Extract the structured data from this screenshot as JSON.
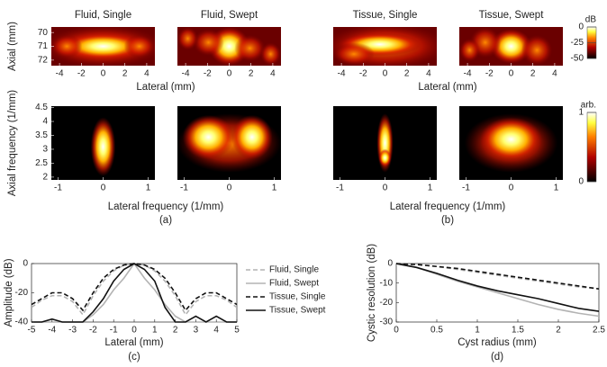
{
  "chart_data": [
    {
      "type": "heatmap",
      "title": "Fluid, Single",
      "xlim": [
        -4.75,
        4.75
      ],
      "xticks": [
        -4,
        -2,
        0,
        2,
        4
      ],
      "ylim": [
        69.6,
        72.4
      ],
      "y_reverse": true,
      "yticks": [
        70,
        71,
        72
      ],
      "ylabel": "Axial (mm)",
      "xlabel": "Lateral (mm)"
    },
    {
      "type": "heatmap",
      "title": "Fluid, Swept",
      "xlim": [
        -4.75,
        4.75
      ],
      "xticks": [
        -4,
        -2,
        0,
        2,
        4
      ],
      "ylim": [
        69.6,
        72.4
      ],
      "y_reverse": true
    },
    {
      "type": "heatmap",
      "title": "Tissue, Single",
      "xlim": [
        -4.75,
        4.75
      ],
      "xticks": [
        -4,
        -2,
        0,
        2,
        4
      ],
      "ylim": [
        69.6,
        72.4
      ],
      "y_reverse": true,
      "xlabel": "Lateral (mm)"
    },
    {
      "type": "heatmap",
      "title": "Tissue, Swept",
      "xlim": [
        -4.75,
        4.75
      ],
      "xticks": [
        -4,
        -2,
        0,
        2,
        4
      ],
      "ylim": [
        69.6,
        72.4
      ],
      "y_reverse": true
    },
    {
      "type": "heatmap",
      "xlim": [
        -1.15,
        1.15
      ],
      "xticks": [
        -1,
        0,
        1
      ],
      "ylim": [
        1.9,
        4.55
      ],
      "yticks": [
        2,
        2.5,
        3,
        3.5,
        4,
        4.5
      ],
      "ylabel": "Axial frequency (1/mm)",
      "xlabel": "Lateral frequency (1/mm)",
      "caption": "(a)"
    },
    {
      "type": "heatmap",
      "xlim": [
        -1.15,
        1.15
      ],
      "xticks": [
        -1,
        0,
        1
      ],
      "ylim": [
        1.9,
        4.55
      ]
    },
    {
      "type": "heatmap",
      "xlim": [
        -1.15,
        1.15
      ],
      "xticks": [
        -1,
        0,
        1
      ],
      "ylim": [
        1.9,
        4.55
      ],
      "xlabel": "Lateral frequency (1/mm)",
      "caption": "(b)"
    },
    {
      "type": "heatmap",
      "xlim": [
        -1.15,
        1.15
      ],
      "xticks": [
        -1,
        0,
        1
      ],
      "ylim": [
        1.9,
        4.55
      ]
    },
    {
      "type": "colorbar",
      "title": "dB",
      "ylim": [
        -50,
        0
      ],
      "yticks": [
        0,
        -25,
        -50
      ]
    },
    {
      "type": "colorbar",
      "title": "arb.",
      "ylim": [
        0,
        1
      ],
      "yticks": [
        1,
        0
      ]
    },
    {
      "type": "line",
      "xlabel": "Lateral (mm)",
      "ylabel": "Amplitude (dB)",
      "caption": "(c)",
      "xlim": [
        -5,
        5
      ],
      "xticks": [
        -5,
        -4,
        -3,
        -2,
        -1,
        0,
        1,
        2,
        3,
        4,
        5
      ],
      "ylim": [
        -40,
        0
      ],
      "yticks": [
        0,
        -20,
        -40
      ],
      "legend": "right",
      "x": [
        -5,
        -4.5,
        -4,
        -3.5,
        -3,
        -2.5,
        -2,
        -1.5,
        -1,
        -0.5,
        0,
        0.5,
        1,
        1.5,
        2,
        2.5,
        3,
        3.5,
        4,
        4.5,
        5
      ],
      "series": [
        {
          "name": "Fluid, Single",
          "color": "#b3b3b3",
          "dash": true,
          "values": [
            -30,
            -25,
            -22,
            -22,
            -26,
            -35,
            -22,
            -12,
            -5,
            -1,
            0,
            -1,
            -5,
            -12,
            -22,
            -35,
            -26,
            -22,
            -22,
            -25,
            -30
          ]
        },
        {
          "name": "Fluid, Swept",
          "color": "#b3b3b3",
          "dash": false,
          "values": [
            -40,
            -40,
            -40,
            -40,
            -40,
            -40,
            -35,
            -28,
            -18,
            -10,
            0,
            -10,
            -18,
            -28,
            -36,
            -40,
            -40,
            -40,
            -40,
            -40,
            -40
          ]
        },
        {
          "name": "Tissue, Single",
          "color": "#111111",
          "dash": true,
          "values": [
            -28,
            -24,
            -20,
            -20,
            -24,
            -32,
            -20,
            -10,
            -4,
            -1,
            0,
            -1,
            -4,
            -10,
            -20,
            -32,
            -24,
            -20,
            -20,
            -24,
            -28
          ]
        },
        {
          "name": "Tissue, Swept",
          "color": "#111111",
          "dash": false,
          "values": [
            -40,
            -40,
            -38,
            -40,
            -40,
            -40,
            -33,
            -24,
            -12,
            -4,
            0,
            -4,
            -12,
            -30,
            -40,
            -40,
            -36,
            -40,
            -36,
            -40,
            -40
          ]
        }
      ]
    },
    {
      "type": "line",
      "xlabel": "Cyst radius (mm)",
      "ylabel": "Cystic resolution (dB)",
      "caption": "(d)",
      "xlim": [
        0,
        2.5
      ],
      "xticks": [
        0,
        0.5,
        1,
        1.5,
        2,
        2.5
      ],
      "ylim": [
        -30,
        0
      ],
      "yticks": [
        0,
        -10,
        -20,
        -30
      ],
      "x": [
        0,
        0.25,
        0.5,
        0.75,
        1,
        1.25,
        1.5,
        1.75,
        2,
        2.25,
        2.5
      ],
      "series": [
        {
          "color": "#b3b3b3",
          "dash": true,
          "values": [
            0,
            -0.5,
            -1.5,
            -3,
            -4.5,
            -6,
            -7.5,
            -9,
            -10.5,
            -12,
            -13
          ]
        },
        {
          "color": "#b3b3b3",
          "dash": false,
          "values": [
            0,
            -2,
            -5.5,
            -9,
            -12,
            -15,
            -18,
            -21,
            -23.5,
            -25.5,
            -27
          ]
        },
        {
          "color": "#111111",
          "dash": true,
          "values": [
            0,
            -0.5,
            -1.5,
            -2.5,
            -4,
            -5.5,
            -7,
            -8.5,
            -10,
            -11.5,
            -13
          ]
        },
        {
          "color": "#111111",
          "dash": false,
          "values": [
            0,
            -2,
            -5,
            -8.5,
            -11.5,
            -14,
            -16,
            -18,
            -20.5,
            -23,
            -24.5
          ]
        }
      ]
    }
  ]
}
